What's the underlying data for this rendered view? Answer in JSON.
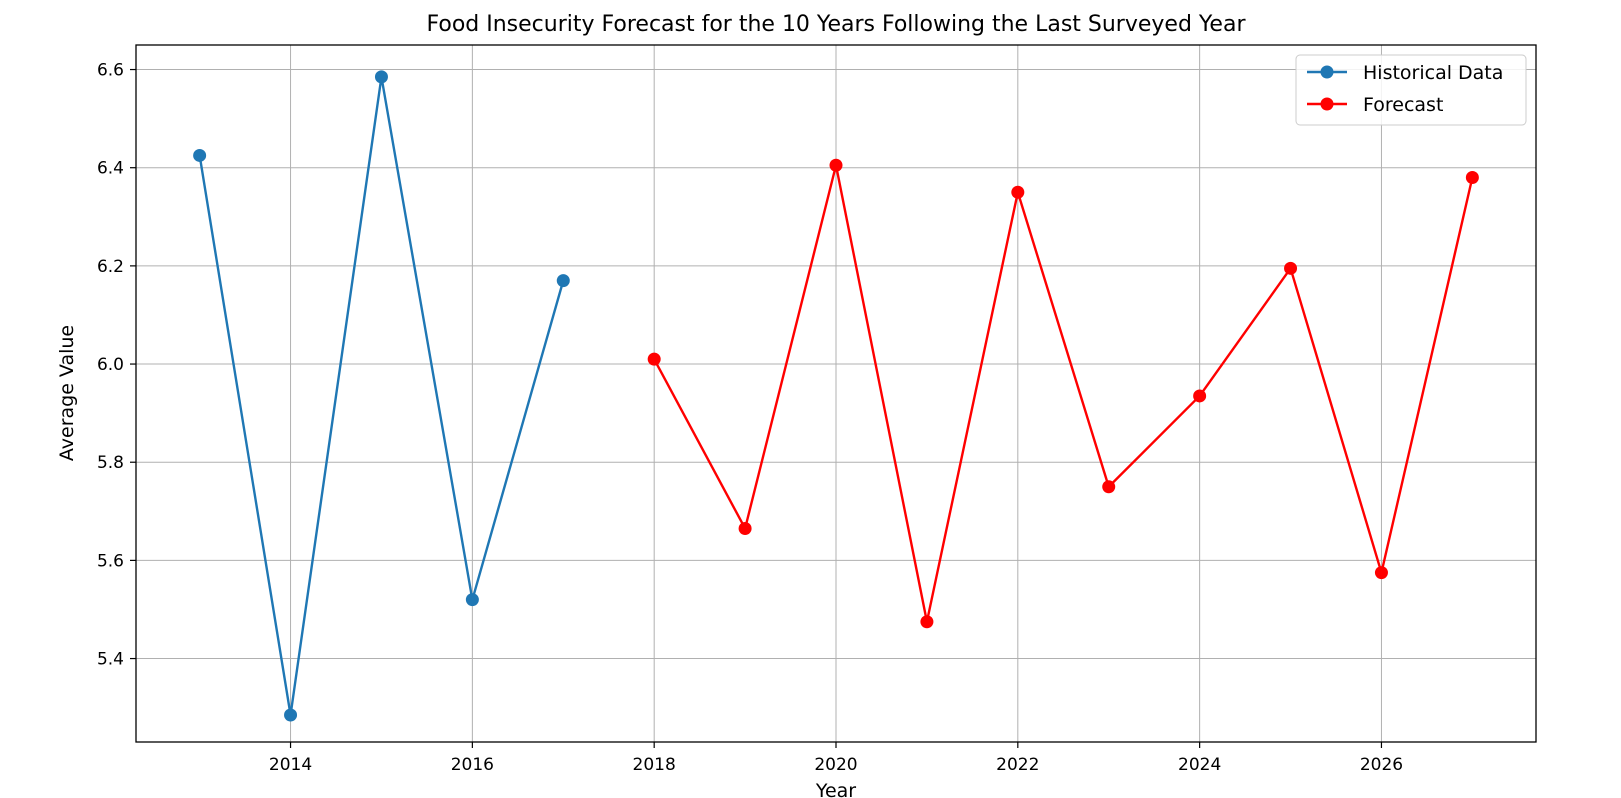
{
  "chart_data": {
    "type": "line",
    "title": "Food Insecurity Forecast for the 10 Years Following the Last Surveyed Year",
    "xlabel": "Year",
    "ylabel": "Average Value",
    "xlim": [
      2012.3,
      2027.7
    ],
    "ylim": [
      5.23,
      6.65
    ],
    "x_ticks": [
      2014,
      2016,
      2018,
      2020,
      2022,
      2024,
      2026
    ],
    "y_ticks": [
      5.4,
      5.6,
      5.8,
      6.0,
      6.2,
      6.4,
      6.6
    ],
    "grid": true,
    "legend_position": "top-right",
    "series": [
      {
        "name": "Historical Data",
        "color": "#1f77b4",
        "marker": "circle",
        "x": [
          2013,
          2014,
          2015,
          2016,
          2017
        ],
        "y": [
          6.425,
          5.285,
          6.585,
          5.52,
          6.17
        ]
      },
      {
        "name": "Forecast",
        "color": "#ff0000",
        "marker": "circle",
        "x": [
          2018,
          2019,
          2020,
          2021,
          2022,
          2023,
          2024,
          2025,
          2026,
          2027
        ],
        "y": [
          6.01,
          5.665,
          6.405,
          5.475,
          6.35,
          5.75,
          5.935,
          6.195,
          5.575,
          6.38
        ]
      }
    ]
  }
}
